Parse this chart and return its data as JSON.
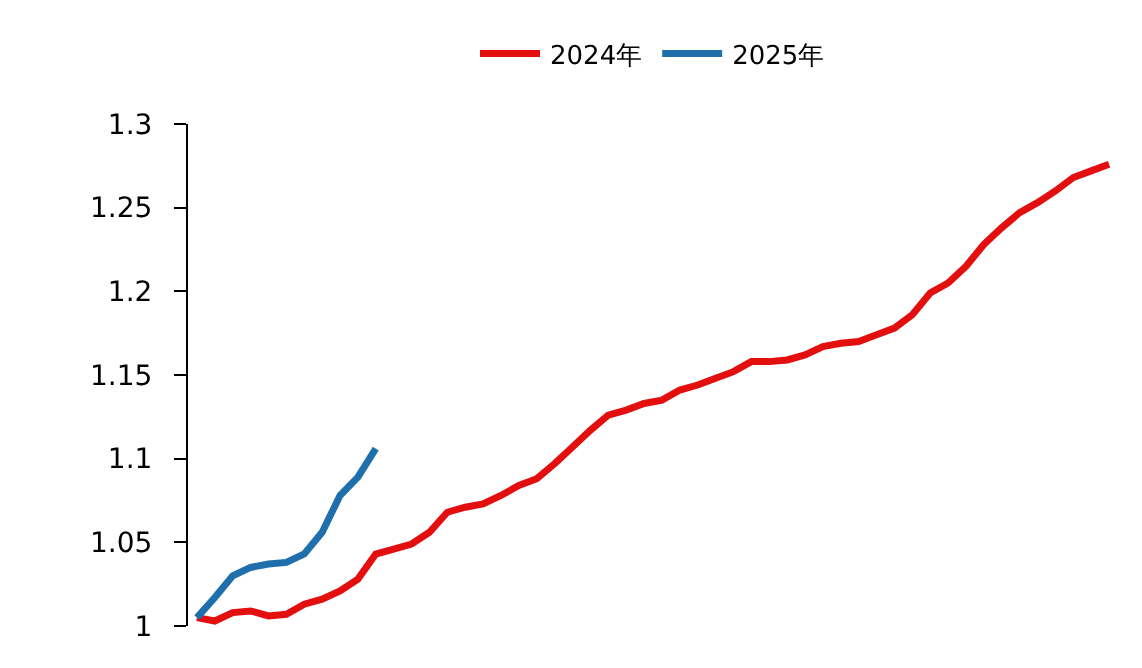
{
  "chart_data": {
    "type": "line",
    "categories": [
      null,
      null,
      null,
      null,
      null,
      null,
      null,
      null,
      null,
      null,
      null,
      null,
      null,
      null,
      null,
      null,
      null,
      null,
      null,
      null,
      null,
      null,
      null,
      null,
      null,
      null,
      null,
      null,
      null,
      null,
      null,
      null,
      null,
      null,
      null,
      null,
      null,
      null,
      null,
      null,
      null,
      null,
      null,
      null,
      null,
      null,
      null,
      null,
      null,
      null,
      null,
      null
    ],
    "series": [
      {
        "name": "2024年",
        "color": "#e30f0f",
        "values": [
          1.005,
          1.003,
          1.008,
          1.009,
          1.006,
          1.007,
          1.013,
          1.016,
          1.021,
          1.028,
          1.043,
          1.046,
          1.049,
          1.056,
          1.068,
          1.071,
          1.073,
          1.078,
          1.084,
          1.088,
          1.097,
          1.107,
          1.117,
          1.126,
          1.129,
          1.133,
          1.135,
          1.141,
          1.144,
          1.148,
          1.152,
          1.158,
          1.158,
          1.159,
          1.162,
          1.167,
          1.169,
          1.17,
          1.174,
          1.178,
          1.186,
          1.199,
          1.205,
          1.215,
          1.228,
          1.238,
          1.247,
          1.253,
          1.26,
          1.268,
          1.272,
          1.276
        ]
      },
      {
        "name": "2025年",
        "color": "#1f6fad",
        "values": [
          1.005,
          1.017,
          1.03,
          1.035,
          1.037,
          1.038,
          1.043,
          1.056,
          1.078,
          1.089,
          1.106,
          null,
          null,
          null,
          null,
          null,
          null,
          null,
          null,
          null,
          null,
          null,
          null,
          null,
          null,
          null,
          null,
          null,
          null,
          null,
          null,
          null,
          null,
          null,
          null,
          null,
          null,
          null,
          null,
          null,
          null,
          null,
          null,
          null,
          null,
          null,
          null,
          null,
          null,
          null,
          null,
          null
        ]
      }
    ],
    "ylim": [
      1,
      1.3
    ],
    "yticks": [
      1,
      1.05,
      1.1,
      1.15,
      1.2,
      1.25,
      1.3
    ],
    "tick_labels": "y",
    "legend": "top",
    "marker": "none",
    "line_style": "solid"
  }
}
